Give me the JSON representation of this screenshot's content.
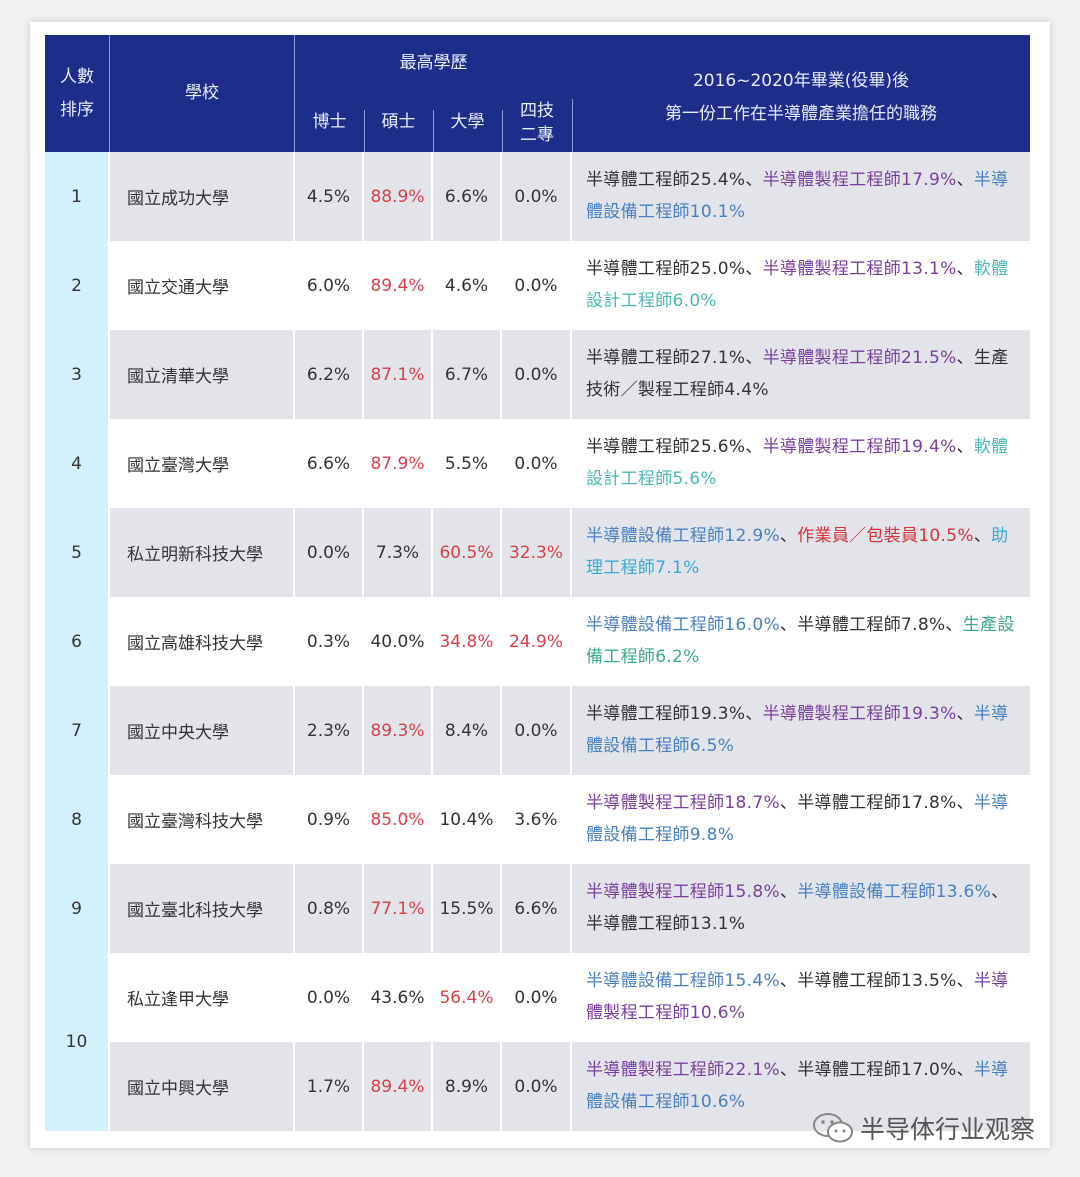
{
  "header": {
    "rank": "人數\n排序",
    "rank_l1": "人數",
    "rank_l2": "排序",
    "school": "學校",
    "edu_group": "最高學歷",
    "phd": "博士",
    "master": "碩士",
    "univ": "大學",
    "tech_l1": "四技",
    "tech_l2": "二專",
    "jobs_l1": "2016~2020年畢業(役畢)後",
    "jobs_l2": "第一份工作在半導體產業擔任的職務"
  },
  "colors": {
    "header_bg": "#1e2d8a",
    "rank_bg": "#d4f0fa",
    "row_gray": "#e3e4e9",
    "highlight": "#d6404a",
    "black": "#333333",
    "purple": "#7a3f9e",
    "blue": "#4a80c2",
    "teal": "#4bb9b2",
    "red": "#d6323c",
    "sky": "#3aa8d8",
    "green": "#3aab8c"
  },
  "rows": [
    {
      "rank": "1",
      "school": "國立成功大學",
      "edu": [
        "4.5%",
        "88.9%",
        "6.6%",
        "0.0%"
      ],
      "hi": [
        1
      ],
      "jobs": [
        {
          "t": "半導體工程師25.4%",
          "c": "black"
        },
        {
          "t": "、",
          "c": "black"
        },
        {
          "t": "半導體製程工程師17.9%",
          "c": "purple"
        },
        {
          "t": "、",
          "c": "black"
        },
        {
          "t": "半導體設備工程師10.1%",
          "c": "blue"
        }
      ]
    },
    {
      "rank": "2",
      "school": "國立交通大學",
      "edu": [
        "6.0%",
        "89.4%",
        "4.6%",
        "0.0%"
      ],
      "hi": [
        1
      ],
      "jobs": [
        {
          "t": "半導體工程師25.0%",
          "c": "black"
        },
        {
          "t": "、",
          "c": "black"
        },
        {
          "t": "半導體製程工程師13.1%",
          "c": "purple"
        },
        {
          "t": "、",
          "c": "black"
        },
        {
          "t": "軟體設計工程師6.0%",
          "c": "teal"
        }
      ]
    },
    {
      "rank": "3",
      "school": "國立清華大學",
      "edu": [
        "6.2%",
        "87.1%",
        "6.7%",
        "0.0%"
      ],
      "hi": [
        1
      ],
      "jobs": [
        {
          "t": "半導體工程師27.1%",
          "c": "black"
        },
        {
          "t": "、",
          "c": "black"
        },
        {
          "t": "半導體製程工程師21.5%",
          "c": "purple"
        },
        {
          "t": "、",
          "c": "black"
        },
        {
          "t": "生產技術／製程工程師4.4%",
          "c": "black"
        }
      ]
    },
    {
      "rank": "4",
      "school": "國立臺灣大學",
      "edu": [
        "6.6%",
        "87.9%",
        "5.5%",
        "0.0%"
      ],
      "hi": [
        1
      ],
      "jobs": [
        {
          "t": "半導體工程師25.6%",
          "c": "black"
        },
        {
          "t": "、",
          "c": "black"
        },
        {
          "t": "半導體製程工程師19.4%",
          "c": "purple"
        },
        {
          "t": "、",
          "c": "black"
        },
        {
          "t": "軟體設計工程師5.6%",
          "c": "teal"
        }
      ]
    },
    {
      "rank": "5",
      "school": "私立明新科技大學",
      "edu": [
        "0.0%",
        "7.3%",
        "60.5%",
        "32.3%"
      ],
      "hi": [
        2,
        3
      ],
      "jobs": [
        {
          "t": "半導體設備工程師12.9%",
          "c": "blue"
        },
        {
          "t": "、",
          "c": "black"
        },
        {
          "t": "作業員／包裝員10.5%",
          "c": "red"
        },
        {
          "t": "、",
          "c": "black"
        },
        {
          "t": "助理工程師7.1%",
          "c": "sky"
        }
      ]
    },
    {
      "rank": "6",
      "school": "國立高雄科技大學",
      "edu": [
        "0.3%",
        "40.0%",
        "34.8%",
        "24.9%"
      ],
      "hi": [
        2,
        3
      ],
      "jobs": [
        {
          "t": "半導體設備工程師16.0%",
          "c": "blue"
        },
        {
          "t": "、",
          "c": "black"
        },
        {
          "t": "半導體工程師7.8%",
          "c": "black"
        },
        {
          "t": "、",
          "c": "black"
        },
        {
          "t": "生產設備工程師6.2%",
          "c": "green"
        }
      ]
    },
    {
      "rank": "7",
      "school": "國立中央大學",
      "edu": [
        "2.3%",
        "89.3%",
        "8.4%",
        "0.0%"
      ],
      "hi": [
        1
      ],
      "jobs": [
        {
          "t": "半導體工程師19.3%",
          "c": "black"
        },
        {
          "t": "、",
          "c": "black"
        },
        {
          "t": "半導體製程工程師19.3%",
          "c": "purple"
        },
        {
          "t": "、",
          "c": "black"
        },
        {
          "t": "半導體設備工程師6.5%",
          "c": "blue"
        }
      ]
    },
    {
      "rank": "8",
      "school": "國立臺灣科技大學",
      "edu": [
        "0.9%",
        "85.0%",
        "10.4%",
        "3.6%"
      ],
      "hi": [
        1
      ],
      "jobs": [
        {
          "t": "半導體製程工程師18.7%",
          "c": "purple"
        },
        {
          "t": "、",
          "c": "black"
        },
        {
          "t": "半導體工程師17.8%",
          "c": "black"
        },
        {
          "t": "、",
          "c": "black"
        },
        {
          "t": "半導體設備工程師9.8%",
          "c": "blue"
        }
      ]
    },
    {
      "rank": "9",
      "school": "國立臺北科技大學",
      "edu": [
        "0.8%",
        "77.1%",
        "15.5%",
        "6.6%"
      ],
      "hi": [
        1
      ],
      "jobs": [
        {
          "t": "半導體製程工程師15.8%",
          "c": "purple"
        },
        {
          "t": "、",
          "c": "black"
        },
        {
          "t": "半導體設備工程師13.6%",
          "c": "blue"
        },
        {
          "t": "、",
          "c": "black"
        },
        {
          "t": "半導體工程師13.1%",
          "c": "black"
        }
      ]
    },
    {
      "rank": "10",
      "school": "私立逢甲大學",
      "edu": [
        "0.0%",
        "43.6%",
        "56.4%",
        "0.0%"
      ],
      "hi": [
        2
      ],
      "jobs": [
        {
          "t": "半導體設備工程師15.4%",
          "c": "blue"
        },
        {
          "t": "、",
          "c": "black"
        },
        {
          "t": "半導體工程師13.5%",
          "c": "black"
        },
        {
          "t": "、",
          "c": "black"
        },
        {
          "t": "半導體製程工程師10.6%",
          "c": "purple"
        }
      ]
    },
    {
      "rank": "10",
      "school": "國立中興大學",
      "edu": [
        "1.7%",
        "89.4%",
        "8.9%",
        "0.0%"
      ],
      "hi": [
        1
      ],
      "jobs": [
        {
          "t": "半導體製程工程師22.1%",
          "c": "purple"
        },
        {
          "t": "、",
          "c": "black"
        },
        {
          "t": "半導體工程師17.0%",
          "c": "black"
        },
        {
          "t": "、",
          "c": "black"
        },
        {
          "t": "半導體設備工程師10.6%",
          "c": "blue"
        }
      ]
    }
  ],
  "watermark": "半导体行业观察"
}
